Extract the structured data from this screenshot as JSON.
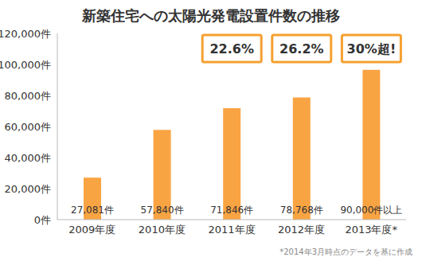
{
  "chart_data": {
    "type": "bar",
    "title": "新築住宅への太陽光発電設置件数の推移",
    "categories": [
      "2009年度",
      "2010年度",
      "2011年度",
      "2012年度",
      "2013年度*"
    ],
    "values": [
      27081,
      57840,
      71846,
      78768,
      96500
    ],
    "value_labels": [
      "27,081件",
      "57,840件",
      "71,846件",
      "78,768件",
      "90,000件以上"
    ],
    "data_labels": true,
    "color": "#f9a443",
    "ylim": [
      0,
      120000
    ],
    "yticks": [
      {
        "value": 0,
        "label": "0件"
      },
      {
        "value": 20000,
        "label": "20,000件"
      },
      {
        "value": 40000,
        "label": "40,000件"
      },
      {
        "value": 60000,
        "label": "60,000件"
      },
      {
        "value": 80000,
        "label": "80,000件"
      },
      {
        "value": 100000,
        "label": "100,000件"
      },
      {
        "value": 120000,
        "label": "120,000件"
      }
    ],
    "grid": false,
    "annotations": [
      {
        "category": "2011年度",
        "text": "22.6%"
      },
      {
        "category": "2012年度",
        "text": "26.2%"
      },
      {
        "category": "2013年度*",
        "text": "30%超!"
      }
    ],
    "footnote": "*2014年3月時点のデータを基に作成"
  }
}
